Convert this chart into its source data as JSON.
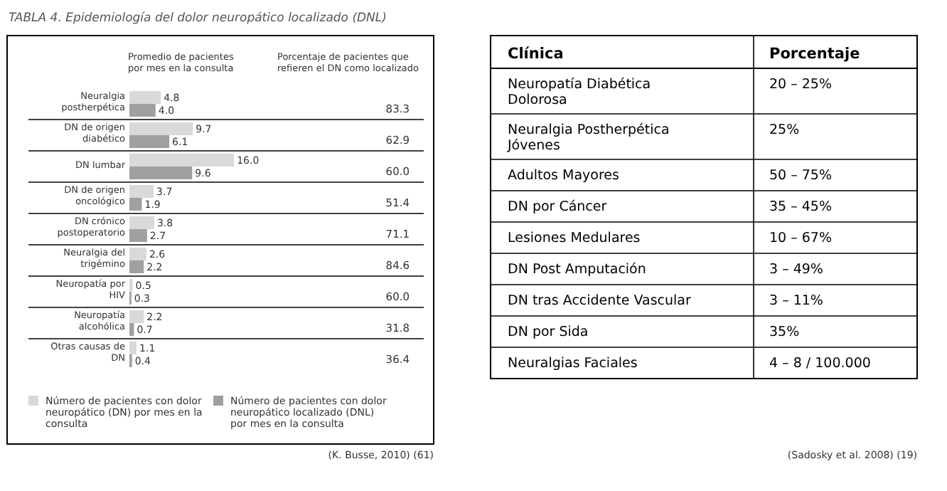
{
  "chart_data": [
    {
      "type": "bar",
      "orientation": "horizontal",
      "title": "TABLA 4. Epidemiología del dolor neuropático localizado (DNL)",
      "xlabel": "Promedio de pacientes por mes en la consulta",
      "categories": [
        "Neuralgia postherpética",
        "DN de origen diabético",
        "DN lumbar",
        "DN de origen oncológico",
        "DN crónico postoperatorio",
        "Neuralgia del trigémino",
        "Neuropatía por HIV",
        "Neuropatía alcohólica",
        "Otras causas de DN"
      ],
      "series": [
        {
          "name": "Número de pacientes con dolor neuropático (DN) por mes en la consulta",
          "color": "#d9d9d9",
          "values": [
            4.8,
            9.7,
            16,
            3.7,
            3.8,
            2.6,
            0.5,
            2.2,
            1.1
          ],
          "value_labels": [
            "4.8",
            "9.7",
            "16.0",
            "3.7",
            "3.8",
            "2.6",
            "0.5",
            "2.2",
            "1.1"
          ]
        },
        {
          "name": "Número de pacientes con dolor neuropático localizado (DNL) por mes en la consulta",
          "color": "#a0a0a0",
          "values": [
            4,
            6.1,
            9.6,
            1.9,
            2.7,
            2.2,
            0.3,
            0.7,
            0.4
          ],
          "value_labels": [
            "4.0",
            "6.1",
            "9.6",
            "1.9",
            "2.7",
            "2.2",
            "0.3",
            "0.7",
            "0.4"
          ]
        }
      ],
      "legend": "bottom",
      "annotations": [
        "Porcentaje de pacientes que refieren el DN como localizado",
        "83.3",
        "62.9",
        "60.0",
        "51.4",
        "71.1",
        "84.6",
        "60.0",
        "31.8",
        "36.4",
        "(K. Busse, 2010) (61)"
      ]
    },
    {
      "type": "other",
      "categories": [
        "Neuropatía Diabética Dolorosa",
        "Neuralgia Postherpética Jóvenes",
        "Adultos Mayores",
        "DN por Cáncer",
        "Lesiones Medulares",
        "DN Post Amputación",
        "DN tras Accidente Vascular",
        "DN por Sida",
        "Neuralgias Faciales"
      ],
      "value_labels": [
        "20 – 25%",
        "25%",
        "50 – 75%",
        "35 – 45%",
        "10 – 67%",
        "3 – 49%",
        "3 – 11%",
        "35%",
        "4 – 8 / 100.000"
      ],
      "annotations": [
        "Clínica",
        "Porcentaje",
        "(Sadosky et al. 2008) (19)"
      ]
    }
  ]
}
